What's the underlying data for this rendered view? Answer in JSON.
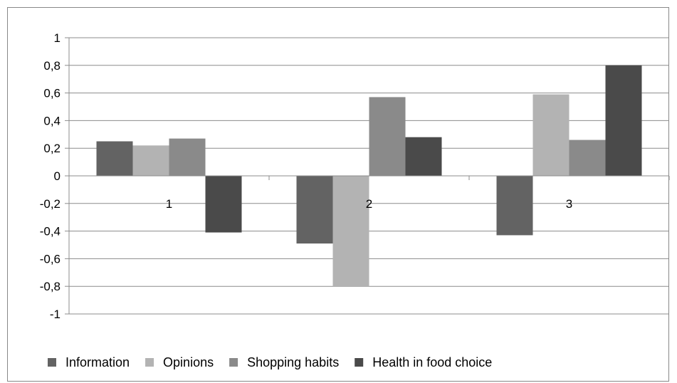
{
  "chart_data": {
    "type": "bar",
    "categories": [
      "1",
      "2",
      "3"
    ],
    "series": [
      {
        "name": "Information",
        "color": "#636363",
        "values": [
          0.25,
          -0.49,
          -0.43
        ]
      },
      {
        "name": "Opinions",
        "color": "#b3b3b3",
        "values": [
          0.22,
          -0.8,
          0.59
        ]
      },
      {
        "name": "Shopping habits",
        "color": "#8a8a8a",
        "values": [
          0.27,
          0.57,
          0.26
        ]
      },
      {
        "name": "Health in food choice",
        "color": "#4a4a4a",
        "values": [
          -0.41,
          0.28,
          0.8
        ]
      }
    ],
    "ylim": [
      -1,
      1
    ],
    "yticks": [
      "1",
      "0,8",
      "0,6",
      "0,4",
      "0,2",
      "0",
      "-0,2",
      "-0,4",
      "-0,6",
      "-0,8",
      "-1"
    ],
    "ytick_values": [
      1,
      0.8,
      0.6,
      0.4,
      0.2,
      0,
      -0.2,
      -0.4,
      -0.6,
      -0.8,
      -1
    ],
    "grid": true,
    "legend_position": "bottom",
    "title": "",
    "xlabel": "",
    "ylabel": ""
  }
}
